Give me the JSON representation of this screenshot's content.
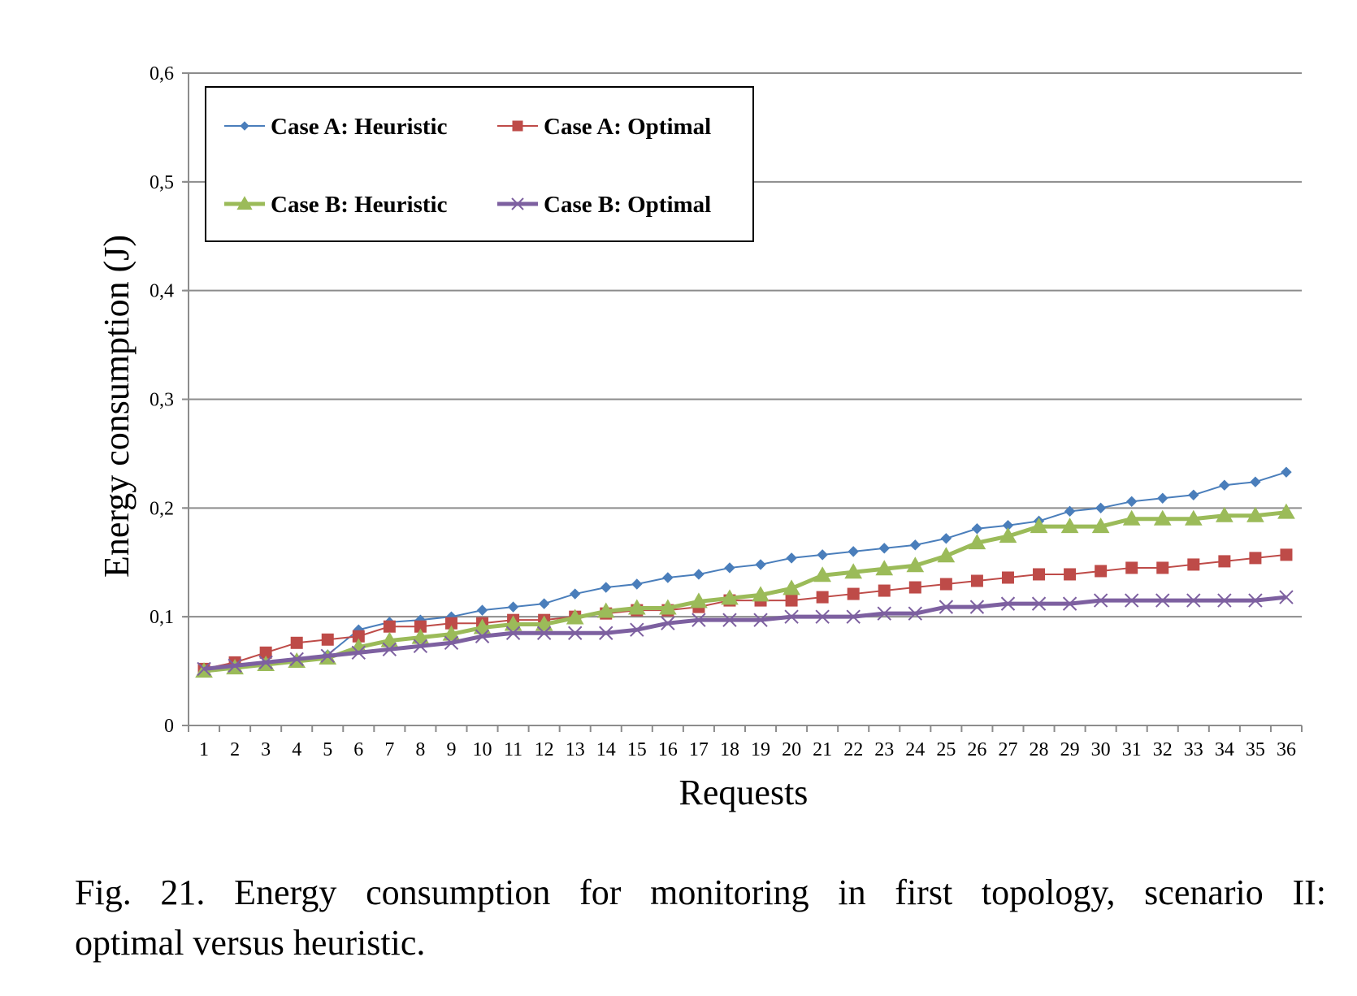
{
  "chart_data": {
    "type": "line",
    "xlabel": "Requests",
    "ylabel": "Energy consumption (J)",
    "categories": [
      "1",
      "2",
      "3",
      "4",
      "5",
      "6",
      "7",
      "8",
      "9",
      "10",
      "11",
      "12",
      "13",
      "14",
      "15",
      "16",
      "17",
      "18",
      "19",
      "20",
      "21",
      "22",
      "23",
      "24",
      "25",
      "26",
      "27",
      "28",
      "29",
      "30",
      "31",
      "32",
      "33",
      "34",
      "35",
      "36"
    ],
    "ylim": [
      0,
      0.6
    ],
    "yticks": [
      "0",
      "0,1",
      "0,2",
      "0,3",
      "0,4",
      "0,5",
      "0,6"
    ],
    "grid": true,
    "legend_position": "top-left",
    "series": [
      {
        "name": "Case A: Heuristic",
        "color": "#4a7ebb",
        "marker": "diamond",
        "values": [
          0.052,
          0.055,
          0.058,
          0.061,
          0.065,
          0.088,
          0.095,
          0.097,
          0.1,
          0.106,
          0.109,
          0.112,
          0.121,
          0.127,
          0.13,
          0.136,
          0.139,
          0.145,
          0.148,
          0.154,
          0.157,
          0.16,
          0.163,
          0.166,
          0.172,
          0.181,
          0.184,
          0.188,
          0.197,
          0.2,
          0.206,
          0.209,
          0.212,
          0.221,
          0.224,
          0.233
        ]
      },
      {
        "name": "Case A: Optimal",
        "color": "#be4b48",
        "marker": "square",
        "values": [
          0.052,
          0.058,
          0.067,
          0.076,
          0.079,
          0.082,
          0.091,
          0.091,
          0.094,
          0.094,
          0.097,
          0.097,
          0.1,
          0.103,
          0.106,
          0.106,
          0.109,
          0.115,
          0.115,
          0.115,
          0.118,
          0.121,
          0.124,
          0.127,
          0.13,
          0.133,
          0.136,
          0.139,
          0.139,
          0.142,
          0.145,
          0.145,
          0.148,
          0.151,
          0.154,
          0.157
        ]
      },
      {
        "name": "Case B: Heuristic",
        "color": "#9bbb59",
        "marker": "triangle",
        "values": [
          0.05,
          0.053,
          0.056,
          0.059,
          0.062,
          0.072,
          0.078,
          0.081,
          0.084,
          0.09,
          0.093,
          0.093,
          0.099,
          0.105,
          0.108,
          0.108,
          0.114,
          0.117,
          0.12,
          0.126,
          0.138,
          0.141,
          0.144,
          0.147,
          0.156,
          0.168,
          0.174,
          0.183,
          0.183,
          0.183,
          0.19,
          0.19,
          0.19,
          0.193,
          0.193,
          0.196
        ]
      },
      {
        "name": "Case B: Optimal",
        "color": "#7d60a0",
        "marker": "x",
        "values": [
          0.052,
          0.055,
          0.058,
          0.061,
          0.064,
          0.067,
          0.07,
          0.073,
          0.076,
          0.082,
          0.085,
          0.085,
          0.085,
          0.085,
          0.088,
          0.094,
          0.097,
          0.097,
          0.097,
          0.1,
          0.1,
          0.1,
          0.103,
          0.103,
          0.109,
          0.109,
          0.112,
          0.112,
          0.112,
          0.115,
          0.115,
          0.115,
          0.115,
          0.115,
          0.115,
          0.118
        ]
      }
    ]
  },
  "caption": {
    "line1": "Fig. 21. Energy consumption for monitoring in first topology, scenario II:",
    "line2": "optimal versus heuristic."
  }
}
